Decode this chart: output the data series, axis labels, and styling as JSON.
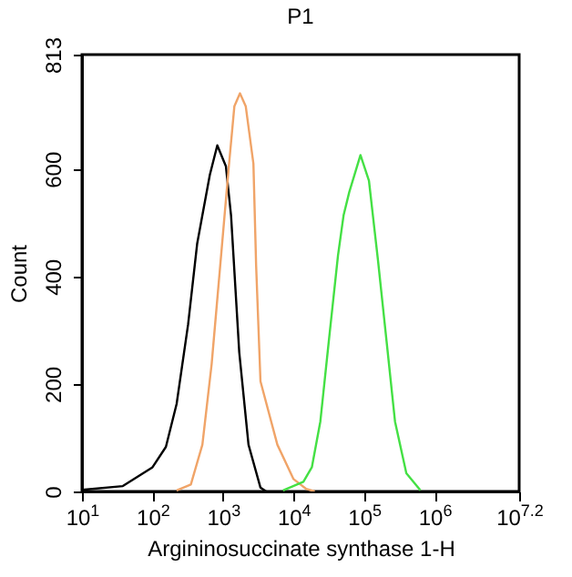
{
  "chart_data": {
    "type": "line",
    "title": "P1",
    "xlabel": "Argininosuccinate synthase 1-H",
    "ylabel": "Count",
    "log": "x",
    "grid": false,
    "legend": false,
    "marker": "none",
    "line_style": "solid",
    "xlim": [
      10,
      15848932
    ],
    "ylim": [
      0,
      813
    ],
    "xticks": [
      {
        "value": 10,
        "label": "10$^{1}$"
      },
      {
        "value": 100,
        "label": "10$^{2}$"
      },
      {
        "value": 1000,
        "label": "10$^{3}$"
      },
      {
        "value": 10000,
        "label": "10$^{4}$"
      },
      {
        "value": 100000,
        "label": "10$^{5}$"
      },
      {
        "value": 1000000,
        "label": "10$^{6}$"
      },
      {
        "value": 15848932,
        "label": "10$^{7.2}$"
      }
    ],
    "yticks": [
      0,
      200,
      400,
      600,
      813
    ],
    "series": [
      {
        "color": "#000000",
        "x": [
          10,
          38,
          100,
          155,
          220,
          320,
          430,
          510,
          650,
          830,
          1100,
          1300,
          1700,
          2300,
          3400,
          4100
        ],
        "values": [
          3,
          10,
          45,
          83,
          163,
          311,
          461,
          514,
          589,
          644,
          605,
          514,
          259,
          87,
          7,
          0
        ]
      },
      {
        "color": "#f0a468",
        "x": [
          220,
          350,
          510,
          690,
          910,
          1200,
          1450,
          1740,
          2100,
          2700,
          2950,
          3400,
          5900,
          10000,
          15000,
          20000
        ],
        "values": [
          2,
          13,
          87,
          237,
          418,
          600,
          717,
          741,
          717,
          610,
          420,
          205,
          87,
          23,
          5,
          0
        ]
      },
      {
        "color": "#44e044",
        "x": [
          7100,
          13800,
          18200,
          24000,
          31600,
          42700,
          51300,
          61700,
          89000,
          117500,
          158000,
          209000,
          275000,
          398000,
          631000
        ],
        "values": [
          2,
          18,
          45,
          130,
          279,
          439,
          514,
          557,
          626,
          578,
          429,
          279,
          130,
          34,
          2
        ]
      }
    ]
  }
}
